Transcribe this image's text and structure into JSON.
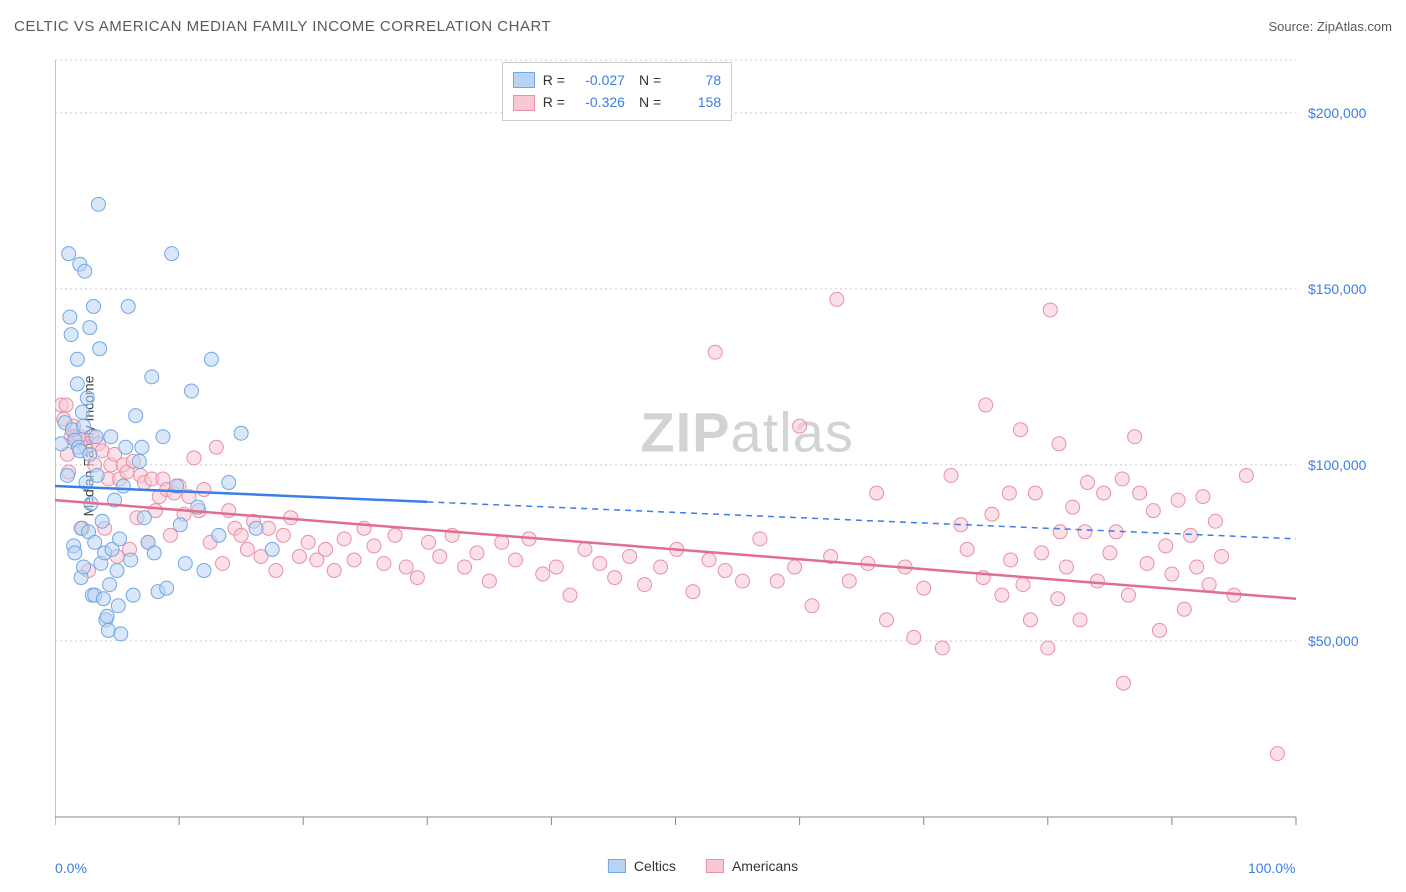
{
  "header": {
    "title": "CELTIC VS AMERICAN MEDIAN FAMILY INCOME CORRELATION CHART",
    "source_prefix": "Source: ",
    "source": "ZipAtlas.com"
  },
  "watermark": {
    "bold": "ZIP",
    "light": "atlas"
  },
  "axes": {
    "ylabel": "Median Family Income",
    "x": {
      "min": 0,
      "max": 100,
      "min_label": "0.0%",
      "max_label": "100.0%",
      "ticks": [
        0,
        10,
        20,
        30,
        40,
        50,
        60,
        70,
        80,
        90,
        100
      ]
    },
    "y": {
      "min": 0,
      "max": 215000,
      "grid": [
        50000,
        100000,
        150000,
        200000
      ],
      "grid_labels": [
        "$50,000",
        "$100,000",
        "$150,000",
        "$200,000"
      ]
    }
  },
  "styling": {
    "background": "#ffffff",
    "grid_color": "#cccccc",
    "axis_color": "#888888",
    "label_color": "#3b7de9",
    "point_radius": 7,
    "point_opacity": 0.55,
    "series": {
      "celtics": {
        "fill": "#b9d4f3",
        "stroke": "#6fa8e6",
        "line": "#3b7de9"
      },
      "americans": {
        "fill": "#f8c9d4",
        "stroke": "#e98fa8",
        "line": "#e16d8f"
      }
    }
  },
  "legend_top": {
    "rows": [
      {
        "key": "celtics",
        "r_label": "R =",
        "r": "-0.027",
        "n_label": "N =",
        "n": "78"
      },
      {
        "key": "americans",
        "r_label": "R =",
        "r": "-0.326",
        "n_label": "N =",
        "n": "158"
      }
    ]
  },
  "legend_bottom": [
    {
      "key": "celtics",
      "label": "Celtics"
    },
    {
      "key": "americans",
      "label": "Americans"
    }
  ],
  "trends": {
    "celtics": {
      "y_at_xmin": 94000,
      "y_at_xmax": 79000,
      "solid_until_x": 30
    },
    "americans": {
      "y_at_xmin": 90000,
      "y_at_xmax": 62000,
      "solid_until_x": 100
    }
  },
  "series": {
    "celtics": [
      [
        0.5,
        106000
      ],
      [
        0.8,
        112000
      ],
      [
        1.0,
        97000
      ],
      [
        1.1,
        160000
      ],
      [
        1.2,
        142000
      ],
      [
        1.3,
        137000
      ],
      [
        1.4,
        110000
      ],
      [
        1.5,
        77000
      ],
      [
        1.6,
        107000
      ],
      [
        1.6,
        75000
      ],
      [
        1.8,
        130000
      ],
      [
        1.8,
        123000
      ],
      [
        1.9,
        105000
      ],
      [
        2.0,
        157000
      ],
      [
        2.0,
        104000
      ],
      [
        2.1,
        82000
      ],
      [
        2.1,
        68000
      ],
      [
        2.2,
        115000
      ],
      [
        2.3,
        111000
      ],
      [
        2.3,
        71000
      ],
      [
        2.4,
        155000
      ],
      [
        2.5,
        95000
      ],
      [
        2.6,
        119000
      ],
      [
        2.7,
        81000
      ],
      [
        2.8,
        139000
      ],
      [
        2.8,
        103000
      ],
      [
        2.9,
        89000
      ],
      [
        3.0,
        63000
      ],
      [
        3.1,
        145000
      ],
      [
        3.2,
        78000
      ],
      [
        3.2,
        63000
      ],
      [
        3.3,
        108000
      ],
      [
        3.4,
        97000
      ],
      [
        3.5,
        174000
      ],
      [
        3.6,
        133000
      ],
      [
        3.7,
        72000
      ],
      [
        3.8,
        84000
      ],
      [
        3.9,
        62000
      ],
      [
        4.0,
        75000
      ],
      [
        4.1,
        56000
      ],
      [
        4.2,
        57000
      ],
      [
        4.3,
        53000
      ],
      [
        4.4,
        66000
      ],
      [
        4.5,
        108000
      ],
      [
        4.6,
        76000
      ],
      [
        4.8,
        90000
      ],
      [
        5.0,
        70000
      ],
      [
        5.1,
        60000
      ],
      [
        5.2,
        79000
      ],
      [
        5.3,
        52000
      ],
      [
        5.5,
        94000
      ],
      [
        5.7,
        105000
      ],
      [
        5.9,
        145000
      ],
      [
        6.1,
        73000
      ],
      [
        6.3,
        63000
      ],
      [
        6.5,
        114000
      ],
      [
        6.8,
        101000
      ],
      [
        7.0,
        105000
      ],
      [
        7.2,
        85000
      ],
      [
        7.5,
        78000
      ],
      [
        7.8,
        125000
      ],
      [
        8.0,
        75000
      ],
      [
        8.3,
        64000
      ],
      [
        8.7,
        108000
      ],
      [
        9.0,
        65000
      ],
      [
        9.4,
        160000
      ],
      [
        9.8,
        94000
      ],
      [
        10.1,
        83000
      ],
      [
        10.5,
        72000
      ],
      [
        11.0,
        121000
      ],
      [
        11.5,
        88000
      ],
      [
        12.0,
        70000
      ],
      [
        12.6,
        130000
      ],
      [
        13.2,
        80000
      ],
      [
        14.0,
        95000
      ],
      [
        15.0,
        109000
      ],
      [
        16.2,
        82000
      ],
      [
        17.5,
        76000
      ]
    ],
    "americans": [
      [
        0.5,
        117000
      ],
      [
        0.7,
        113000
      ],
      [
        0.9,
        117000
      ],
      [
        1.0,
        103000
      ],
      [
        1.1,
        98000
      ],
      [
        1.3,
        108000
      ],
      [
        1.5,
        111000
      ],
      [
        1.6,
        108000
      ],
      [
        1.8,
        107000
      ],
      [
        2.0,
        108000
      ],
      [
        2.2,
        82000
      ],
      [
        2.5,
        105000
      ],
      [
        2.7,
        70000
      ],
      [
        3.0,
        108000
      ],
      [
        3.2,
        100000
      ],
      [
        3.5,
        106000
      ],
      [
        3.8,
        104000
      ],
      [
        4.0,
        82000
      ],
      [
        4.3,
        96000
      ],
      [
        4.5,
        100000
      ],
      [
        4.8,
        103000
      ],
      [
        5.0,
        74000
      ],
      [
        5.2,
        96000
      ],
      [
        5.5,
        100000
      ],
      [
        5.8,
        98000
      ],
      [
        6.0,
        76000
      ],
      [
        6.3,
        101000
      ],
      [
        6.6,
        85000
      ],
      [
        6.9,
        97000
      ],
      [
        7.2,
        95000
      ],
      [
        7.5,
        78000
      ],
      [
        7.8,
        96000
      ],
      [
        8.1,
        87000
      ],
      [
        8.4,
        91000
      ],
      [
        8.7,
        96000
      ],
      [
        9.0,
        93000
      ],
      [
        9.3,
        80000
      ],
      [
        9.6,
        92000
      ],
      [
        10.0,
        94000
      ],
      [
        10.4,
        86000
      ],
      [
        10.8,
        91000
      ],
      [
        11.2,
        102000
      ],
      [
        11.6,
        87000
      ],
      [
        12.0,
        93000
      ],
      [
        12.5,
        78000
      ],
      [
        13.0,
        105000
      ],
      [
        13.5,
        72000
      ],
      [
        14.0,
        87000
      ],
      [
        14.5,
        82000
      ],
      [
        15.0,
        80000
      ],
      [
        15.5,
        76000
      ],
      [
        16.0,
        84000
      ],
      [
        16.6,
        74000
      ],
      [
        17.2,
        82000
      ],
      [
        17.8,
        70000
      ],
      [
        18.4,
        80000
      ],
      [
        19.0,
        85000
      ],
      [
        19.7,
        74000
      ],
      [
        20.4,
        78000
      ],
      [
        21.1,
        73000
      ],
      [
        21.8,
        76000
      ],
      [
        22.5,
        70000
      ],
      [
        23.3,
        79000
      ],
      [
        24.1,
        73000
      ],
      [
        24.9,
        82000
      ],
      [
        25.7,
        77000
      ],
      [
        26.5,
        72000
      ],
      [
        27.4,
        80000
      ],
      [
        28.3,
        71000
      ],
      [
        29.2,
        68000
      ],
      [
        30.1,
        78000
      ],
      [
        31.0,
        74000
      ],
      [
        32.0,
        80000
      ],
      [
        33.0,
        71000
      ],
      [
        34.0,
        75000
      ],
      [
        35.0,
        67000
      ],
      [
        36.0,
        78000
      ],
      [
        37.1,
        73000
      ],
      [
        38.2,
        79000
      ],
      [
        39.3,
        69000
      ],
      [
        40.4,
        71000
      ],
      [
        41.5,
        63000
      ],
      [
        42.7,
        76000
      ],
      [
        43.9,
        72000
      ],
      [
        45.1,
        68000
      ],
      [
        46.3,
        74000
      ],
      [
        47.5,
        66000
      ],
      [
        48.8,
        71000
      ],
      [
        50.1,
        76000
      ],
      [
        51.4,
        64000
      ],
      [
        52.7,
        73000
      ],
      [
        53.2,
        132000
      ],
      [
        54.0,
        70000
      ],
      [
        55.4,
        67000
      ],
      [
        56.8,
        79000
      ],
      [
        58.2,
        67000
      ],
      [
        59.6,
        71000
      ],
      [
        60.0,
        111000
      ],
      [
        61.0,
        60000
      ],
      [
        62.5,
        74000
      ],
      [
        63.0,
        147000
      ],
      [
        64.0,
        67000
      ],
      [
        65.5,
        72000
      ],
      [
        66.2,
        92000
      ],
      [
        67.0,
        56000
      ],
      [
        68.5,
        71000
      ],
      [
        69.2,
        51000
      ],
      [
        70.0,
        65000
      ],
      [
        71.5,
        48000
      ],
      [
        72.2,
        97000
      ],
      [
        73.0,
        83000
      ],
      [
        73.5,
        76000
      ],
      [
        74.8,
        68000
      ],
      [
        75.0,
        117000
      ],
      [
        75.5,
        86000
      ],
      [
        76.3,
        63000
      ],
      [
        76.9,
        92000
      ],
      [
        77.0,
        73000
      ],
      [
        77.8,
        110000
      ],
      [
        78.0,
        66000
      ],
      [
        78.6,
        56000
      ],
      [
        79.0,
        92000
      ],
      [
        79.5,
        75000
      ],
      [
        80.0,
        48000
      ],
      [
        80.2,
        144000
      ],
      [
        80.8,
        62000
      ],
      [
        80.9,
        106000
      ],
      [
        81.0,
        81000
      ],
      [
        81.5,
        71000
      ],
      [
        82.0,
        88000
      ],
      [
        82.6,
        56000
      ],
      [
        83.0,
        81000
      ],
      [
        83.2,
        95000
      ],
      [
        84.0,
        67000
      ],
      [
        84.5,
        92000
      ],
      [
        85.0,
        75000
      ],
      [
        85.5,
        81000
      ],
      [
        86.0,
        96000
      ],
      [
        86.1,
        38000
      ],
      [
        86.5,
        63000
      ],
      [
        87.0,
        108000
      ],
      [
        87.4,
        92000
      ],
      [
        96.0,
        97000
      ],
      [
        95.0,
        63000
      ],
      [
        88.0,
        72000
      ],
      [
        88.5,
        87000
      ],
      [
        89.0,
        53000
      ],
      [
        89.5,
        77000
      ],
      [
        90.0,
        69000
      ],
      [
        90.5,
        90000
      ],
      [
        91.0,
        59000
      ],
      [
        91.5,
        80000
      ],
      [
        92.0,
        71000
      ],
      [
        92.5,
        91000
      ],
      [
        93.0,
        66000
      ],
      [
        93.5,
        84000
      ],
      [
        94.0,
        74000
      ],
      [
        98.5,
        18000
      ]
    ]
  }
}
